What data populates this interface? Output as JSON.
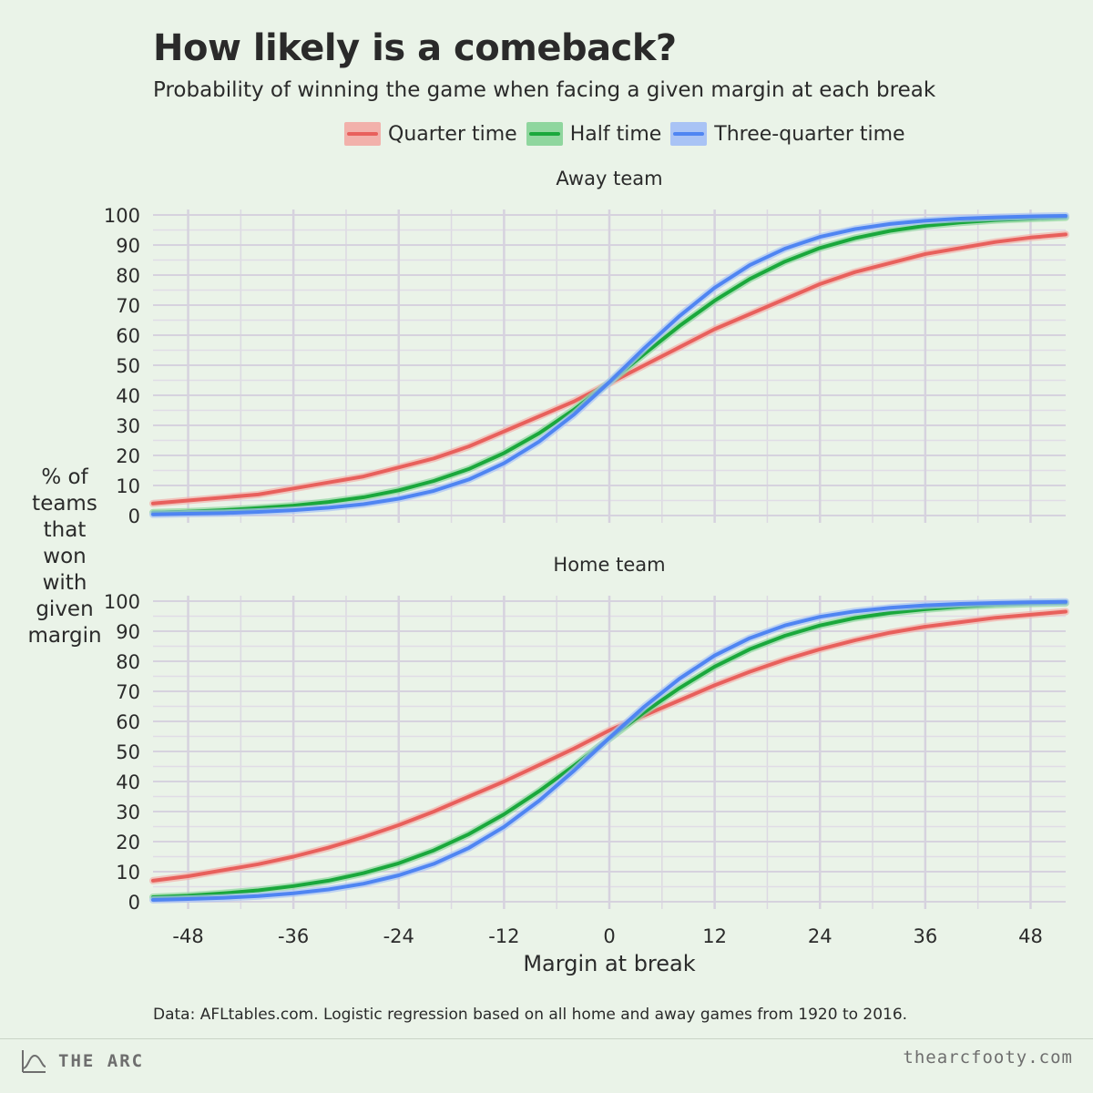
{
  "header": {
    "title": "How likely is a comeback?",
    "subtitle": "Probability of winning the game when facing a given margin at each break"
  },
  "legend": [
    {
      "label": "Quarter time",
      "color": "#e8605c",
      "band": "#f2b1ab"
    },
    {
      "label": "Half time",
      "color": "#1aa83c",
      "band": "#8fd69e"
    },
    {
      "label": "Three-quarter time",
      "color": "#4f85f2",
      "band": "#a9c3f5"
    }
  ],
  "y_axis_label": "% of teams that won with given margin",
  "caption": "Data: AFLtables.com. Logistic regression based on all home and away games from 1920 to 2016.",
  "footer": {
    "brand": "THE ARC",
    "site": "thearcfooty.com"
  },
  "chart_data": {
    "type": "line",
    "xlabel": "Margin at break",
    "xlim": [
      -52,
      52
    ],
    "x_ticks": [
      -48,
      -36,
      -24,
      -12,
      0,
      12,
      24,
      36,
      48
    ],
    "ylim": [
      0,
      100
    ],
    "y_ticks": [
      0,
      10,
      20,
      30,
      40,
      50,
      60,
      70,
      80,
      90,
      100
    ],
    "x": [
      -52,
      -48,
      -44,
      -40,
      -36,
      -32,
      -28,
      -24,
      -20,
      -16,
      -12,
      -8,
      -4,
      0,
      4,
      8,
      12,
      16,
      20,
      24,
      28,
      32,
      36,
      40,
      44,
      48,
      52
    ],
    "panels": [
      {
        "title": "Away team",
        "series": [
          {
            "name": "Quarter time",
            "values": [
              4,
              5,
              6,
              7,
              9,
              11,
              13,
              16,
              19,
              23,
              28,
              33,
              38,
              44,
              50,
              56,
              62,
              67,
              72,
              77,
              81,
              84,
              87,
              89,
              91,
              92.5,
              93.5
            ]
          },
          {
            "name": "Half time",
            "values": [
              1,
              1.3,
              1.8,
              2.5,
              3.3,
              4.5,
              6.1,
              8.4,
              11.5,
              15.5,
              20.8,
              27.4,
              35.3,
              44.3,
              53.8,
              63.1,
              71.5,
              78.7,
              84.5,
              89,
              92.3,
              94.7,
              96.4,
              97.5,
              98.3,
              98.8,
              99.2
            ]
          },
          {
            "name": "Three-quarter time",
            "values": [
              0.4,
              0.6,
              0.8,
              1.2,
              1.8,
              2.6,
              3.8,
              5.6,
              8.2,
              12,
              17.4,
              24.6,
              33.7,
              44.4,
              55.7,
              66.4,
              75.8,
              83.3,
              88.8,
              92.7,
              95.3,
              97,
              98.1,
              98.8,
              99.2,
              99.5,
              99.7
            ]
          }
        ]
      },
      {
        "title": "Home team",
        "series": [
          {
            "name": "Quarter time",
            "values": [
              7,
              8.5,
              10.5,
              12.5,
              15,
              18,
              21.5,
              25.5,
              30,
              35,
              40,
              45.5,
              51,
              57,
              62,
              67,
              72,
              76.5,
              80.5,
              84,
              87,
              89.5,
              91.5,
              93,
              94.5,
              95.5,
              96.5
            ]
          },
          {
            "name": "Half time",
            "values": [
              1.5,
              2,
              2.8,
              3.8,
              5.2,
              7,
              9.5,
              12.8,
              17.1,
              22.5,
              29.1,
              36.8,
              45.3,
              54.3,
              63.1,
              71.1,
              78.2,
              84,
              88.5,
              91.9,
              94.4,
              96.1,
              97.3,
              98.2,
              98.8,
              99.2,
              99.4
            ]
          },
          {
            "name": "Three-quarter time",
            "values": [
              0.6,
              0.9,
              1.3,
              1.9,
              2.8,
              4.1,
              6,
              8.8,
              12.6,
              17.9,
              24.9,
              33.6,
              43.7,
              54.5,
              64.9,
              74.2,
              81.9,
              87.7,
              91.9,
              94.8,
              96.6,
              97.8,
              98.6,
              99.1,
              99.4,
              99.6,
              99.8
            ]
          }
        ]
      }
    ]
  }
}
